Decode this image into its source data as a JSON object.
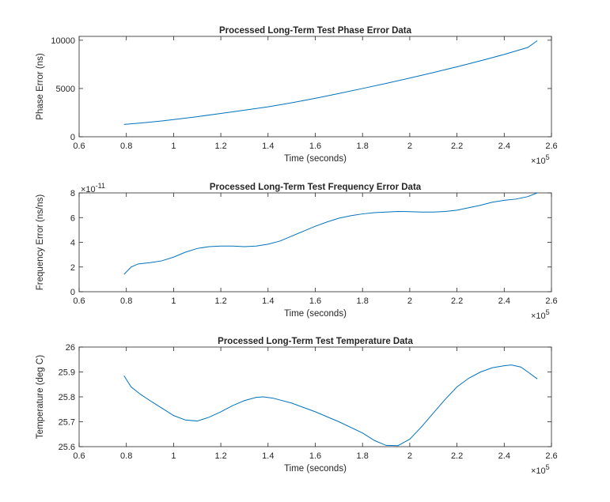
{
  "chart_data": [
    {
      "type": "line",
      "title": "Processed Long-Term Test Phase Error Data",
      "xlabel": "Time (seconds)",
      "ylabel": "Phase Error (ns)",
      "x_exponent": "×10^5",
      "xlim": [
        0.6,
        2.6
      ],
      "ylim": [
        0,
        10400
      ],
      "xticks": [
        0.6,
        0.8,
        1,
        1.2,
        1.4,
        1.6,
        1.8,
        2,
        2.2,
        2.4,
        2.6
      ],
      "xtick_labels": [
        "0.6",
        "0.8",
        "1",
        "1.2",
        "1.4",
        "1.6",
        "1.8",
        "2",
        "2.2",
        "2.4",
        "2.6"
      ],
      "yticks": [
        0,
        5000,
        10000
      ],
      "ytick_labels": [
        "0",
        "5000",
        "10000"
      ],
      "y_exponent_base": "",
      "y_exponent_power": "",
      "grid": false,
      "color": "#0072bd",
      "series": [
        {
          "x": [
            0.79,
            0.85,
            0.9,
            0.95,
            1.0,
            1.1,
            1.2,
            1.3,
            1.4,
            1.5,
            1.6,
            1.7,
            1.8,
            1.9,
            2.0,
            2.1,
            2.2,
            2.3,
            2.4,
            2.5,
            2.54
          ],
          "y": [
            1280,
            1400,
            1520,
            1640,
            1780,
            2080,
            2420,
            2750,
            3100,
            3520,
            3980,
            4480,
            5000,
            5530,
            6080,
            6650,
            7250,
            7870,
            8530,
            9250,
            9950
          ]
        }
      ]
    },
    {
      "type": "line",
      "title": "Processed Long-Term Test Frequency Error Data",
      "xlabel": "Time (seconds)",
      "ylabel": "Frequency Error (ns/ns)",
      "x_exponent": "×10^5",
      "xlim": [
        0.6,
        2.6
      ],
      "ylim": [
        0,
        8
      ],
      "xticks": [
        0.6,
        0.8,
        1,
        1.2,
        1.4,
        1.6,
        1.8,
        2,
        2.2,
        2.4,
        2.6
      ],
      "xtick_labels": [
        "0.6",
        "0.8",
        "1",
        "1.2",
        "1.4",
        "1.6",
        "1.8",
        "2",
        "2.2",
        "2.4",
        "2.6"
      ],
      "yticks": [
        0,
        2,
        4,
        6,
        8
      ],
      "ytick_labels": [
        "0",
        "2",
        "4",
        "6",
        "8"
      ],
      "y_exponent_base": "×10",
      "y_exponent_power": "-11",
      "grid": false,
      "color": "#0072bd",
      "series": [
        {
          "x": [
            0.79,
            0.82,
            0.85,
            0.9,
            0.95,
            1.0,
            1.05,
            1.1,
            1.15,
            1.2,
            1.25,
            1.3,
            1.35,
            1.4,
            1.45,
            1.5,
            1.55,
            1.6,
            1.65,
            1.7,
            1.75,
            1.8,
            1.85,
            1.9,
            1.95,
            2.0,
            2.05,
            2.1,
            2.15,
            2.2,
            2.25,
            2.3,
            2.35,
            2.4,
            2.45,
            2.5,
            2.54
          ],
          "y": [
            1.4,
            2.0,
            2.25,
            2.35,
            2.5,
            2.8,
            3.2,
            3.5,
            3.65,
            3.7,
            3.7,
            3.65,
            3.7,
            3.85,
            4.1,
            4.5,
            4.9,
            5.3,
            5.65,
            5.95,
            6.15,
            6.3,
            6.4,
            6.45,
            6.5,
            6.48,
            6.45,
            6.45,
            6.5,
            6.6,
            6.8,
            7.0,
            7.25,
            7.4,
            7.5,
            7.7,
            8.0
          ]
        }
      ]
    },
    {
      "type": "line",
      "title": "Processed Long-Term Test Temperature Data",
      "xlabel": "Time (seconds)",
      "ylabel": "Temperature (deg C)",
      "x_exponent": "×10^5",
      "xlim": [
        0.6,
        2.6
      ],
      "ylim": [
        25.6,
        26
      ],
      "xticks": [
        0.6,
        0.8,
        1,
        1.2,
        1.4,
        1.6,
        1.8,
        2,
        2.2,
        2.4,
        2.6
      ],
      "xtick_labels": [
        "0.6",
        "0.8",
        "1",
        "1.2",
        "1.4",
        "1.6",
        "1.8",
        "2",
        "2.2",
        "2.4",
        "2.6"
      ],
      "yticks": [
        25.6,
        25.7,
        25.8,
        25.9,
        26
      ],
      "ytick_labels": [
        "25.6",
        "25.7",
        "25.8",
        "25.9",
        "26"
      ],
      "y_exponent_base": "",
      "y_exponent_power": "",
      "grid": false,
      "color": "#0072bd",
      "series": [
        {
          "x": [
            0.79,
            0.82,
            0.86,
            0.9,
            0.95,
            1.0,
            1.05,
            1.1,
            1.15,
            1.2,
            1.25,
            1.3,
            1.35,
            1.38,
            1.42,
            1.5,
            1.6,
            1.7,
            1.8,
            1.85,
            1.9,
            1.95,
            2.0,
            2.05,
            2.1,
            2.15,
            2.2,
            2.25,
            2.3,
            2.35,
            2.4,
            2.43,
            2.47,
            2.5,
            2.54
          ],
          "y": [
            25.885,
            25.84,
            25.81,
            25.785,
            25.755,
            25.725,
            25.707,
            25.703,
            25.718,
            25.74,
            25.765,
            25.785,
            25.798,
            25.8,
            25.795,
            25.775,
            25.74,
            25.7,
            25.655,
            25.625,
            25.605,
            25.604,
            25.63,
            25.68,
            25.735,
            25.79,
            25.84,
            25.875,
            25.9,
            25.917,
            25.925,
            25.928,
            25.92,
            25.9,
            25.872
          ]
        }
      ]
    }
  ]
}
